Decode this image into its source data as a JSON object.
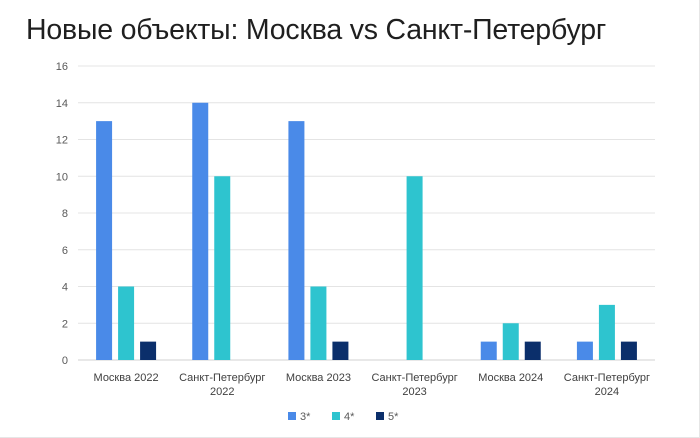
{
  "title": "Новые объекты: Москва vs Санкт-Петербург",
  "chart_data": {
    "type": "bar",
    "title": "Новые объекты: Москва vs Санкт-Петербург",
    "categories": [
      [
        "Москва 2022"
      ],
      [
        "Санкт-Петербург",
        "2022"
      ],
      [
        "Москва 2023"
      ],
      [
        "Санкт-Петербург",
        "2023"
      ],
      [
        "Москва 2024"
      ],
      [
        "Санкт-Петербург",
        "2024"
      ]
    ],
    "series": [
      {
        "name": "3*",
        "color": "#4a8ae8",
        "values": [
          13,
          14,
          13,
          0,
          1,
          1
        ]
      },
      {
        "name": "4*",
        "color": "#2ec4cf",
        "values": [
          4,
          10,
          4,
          10,
          2,
          3
        ]
      },
      {
        "name": "5*",
        "color": "#0b2f6b",
        "values": [
          1,
          0,
          1,
          0,
          1,
          1
        ]
      }
    ],
    "ylim": [
      0,
      16
    ],
    "yticks": [
      0,
      2,
      4,
      6,
      8,
      10,
      12,
      14,
      16
    ],
    "grid": true,
    "legend": "bottom"
  }
}
